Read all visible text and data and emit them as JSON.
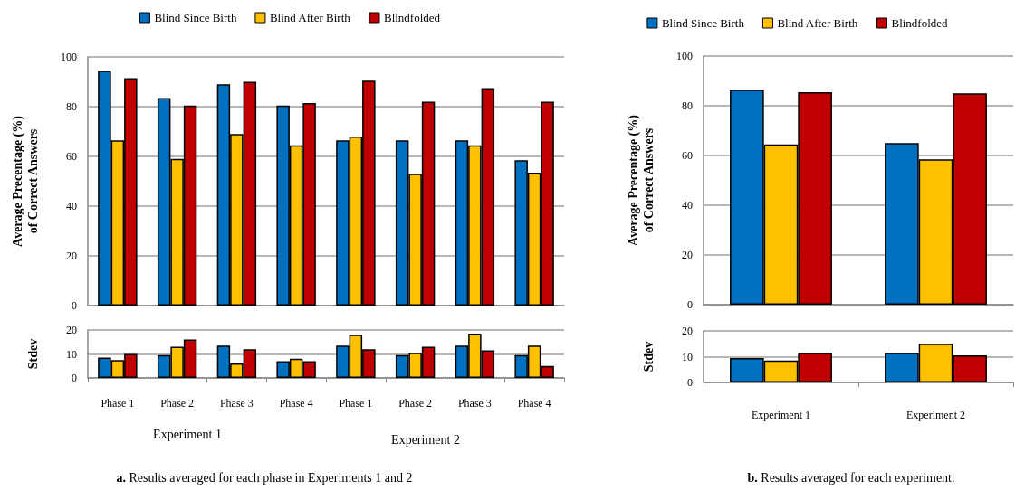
{
  "chart_data": [
    {
      "type": "bar",
      "categories": [
        null,
        null,
        null,
        null,
        null,
        null,
        null,
        null
      ],
      "ylabel": "Average Precentage (%) of Correct Answers",
      "ylim": [
        0,
        100
      ],
      "yticks": [
        0,
        20,
        40,
        60,
        80,
        100
      ],
      "grid": "y",
      "legend": "top",
      "tick_labels": "y",
      "series": [
        {
          "name": "Blind Since Birth",
          "color": "#0070c0",
          "values": [
            94.5,
            83.5,
            89,
            80.5,
            66.5,
            66.5,
            66.5,
            58.5
          ]
        },
        {
          "name": "Blind After Birth",
          "color": "#ffc000",
          "values": [
            66.5,
            59,
            69,
            64.5,
            68,
            53,
            64.5,
            53.5
          ]
        },
        {
          "name": "Blindfolded",
          "color": "#c00000",
          "values": [
            91.5,
            80.5,
            90,
            81.5,
            90.5,
            82,
            87.5,
            82
          ]
        }
      ]
    },
    {
      "type": "bar",
      "categories": [
        "Phase 1",
        "Phase 2",
        "Phase 3",
        "Phase 4",
        "Phase 1",
        "Phase 2",
        "Phase 3",
        "Phase 4"
      ],
      "ylabel": "Stdev",
      "ylim": [
        0,
        20
      ],
      "yticks": [
        0,
        10,
        20
      ],
      "grid": "y",
      "annotations": [
        "Experiment 1",
        "Experiment 2",
        "a. Results averaged for each phase in Experiments 1 and 2"
      ],
      "series": [
        {
          "color": "#0070c0",
          "values": [
            8.5,
            9.5,
            13.5,
            7,
            13.5,
            9.5,
            13.5,
            9.5
          ]
        },
        {
          "color": "#ffc000",
          "values": [
            7.5,
            13,
            6,
            8,
            18,
            10.5,
            18.5,
            13.5
          ]
        },
        {
          "color": "#c00000",
          "values": [
            10,
            16,
            12,
            7,
            12,
            13,
            11.5,
            5
          ]
        }
      ]
    },
    {
      "type": "bar",
      "categories": [
        null,
        null
      ],
      "ylabel": "Average Precentage (%) of Correct Answers",
      "ylim": [
        0,
        100
      ],
      "yticks": [
        0,
        20,
        40,
        60,
        80,
        100
      ],
      "grid": "y",
      "legend": "top",
      "tick_labels": "y",
      "series": [
        {
          "name": "Blind Since Birth",
          "color": "#0070c0",
          "values": [
            86.5,
            65
          ]
        },
        {
          "name": "Blind After Birth",
          "color": "#ffc000",
          "values": [
            64.5,
            58.5
          ]
        },
        {
          "name": "Blindfolded",
          "color": "#c00000",
          "values": [
            85.5,
            85
          ]
        }
      ]
    },
    {
      "type": "bar",
      "categories": [
        "Experiment 1",
        "Experiment 2"
      ],
      "ylabel": "Stdev",
      "ylim": [
        0,
        20
      ],
      "yticks": [
        0,
        10,
        20
      ],
      "grid": "y",
      "annotations": [
        "b. Results averaged for each experiment."
      ],
      "series": [
        {
          "color": "#0070c0",
          "values": [
            9.5,
            11.5
          ]
        },
        {
          "color": "#ffc000",
          "values": [
            8.5,
            15
          ]
        },
        {
          "color": "#c00000",
          "values": [
            11.5,
            10.5
          ]
        }
      ]
    }
  ]
}
